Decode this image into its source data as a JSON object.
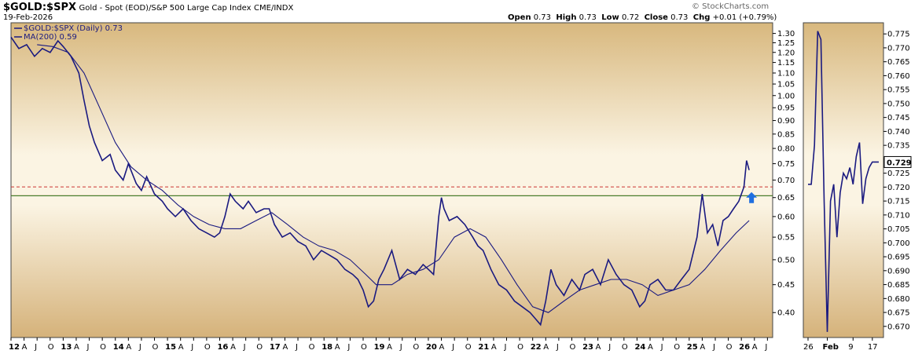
{
  "header": {
    "symbol": "$GOLD:$SPX",
    "description": "Gold - Spot (EOD)/S&P 500 Large Cap Index",
    "exchange": "CME/INDX",
    "date": "19-Feb-2026",
    "brand": "© StockCharts.com",
    "open_label": "Open",
    "open": "0.73",
    "high_label": "High",
    "high": "0.73",
    "low_label": "Low",
    "low": "0.72",
    "close_label": "Close",
    "close": "0.73",
    "chg_label": "Chg",
    "chg": "+0.01 (+0.79%)"
  },
  "chart_data": [
    {
      "type": "line",
      "title": "$GOLD:$SPX",
      "legend_placement": "top-left",
      "x_labels": [
        "12",
        "A",
        "J",
        "O",
        "13",
        "A",
        "J",
        "O",
        "14",
        "A",
        "J",
        "O",
        "15",
        "A",
        "J",
        "O",
        "16",
        "A",
        "J",
        "O",
        "17",
        "A",
        "J",
        "O",
        "18",
        "A",
        "J",
        "O",
        "19",
        "A",
        "J",
        "O",
        "20",
        "A",
        "J",
        "O",
        "21",
        "A",
        "J",
        "O",
        "22",
        "A",
        "J",
        "O",
        "23",
        "A",
        "J",
        "O",
        "24",
        "A",
        "J",
        "O",
        "25",
        "A",
        "J",
        "O",
        "26",
        "A",
        "J"
      ],
      "y_scale": "log",
      "y_ticks": [
        "1.30",
        "1.25",
        "1.20",
        "1.15",
        "1.10",
        "1.05",
        "1.00",
        "0.95",
        "0.90",
        "0.85",
        "0.80",
        "0.75",
        "0.70",
        "0.65",
        "0.60",
        "0.55",
        "0.50",
        "0.45",
        "0.40"
      ],
      "y_range": [
        0.36,
        1.36
      ],
      "x_range": [
        2012.0,
        2026.6
      ],
      "reference_lines": [
        {
          "value": 0.68,
          "style": "dashed",
          "color": "#cc3333"
        },
        {
          "value": 0.655,
          "style": "solid",
          "color": "#cc0000"
        },
        {
          "value": 0.655,
          "style": "solid",
          "color": "#2a8c2a"
        }
      ],
      "series": [
        {
          "name": "$GOLD:$SPX (Daily) 0.73",
          "color": "#1a1a80",
          "x": [
            2012.0,
            2012.15,
            2012.3,
            2012.45,
            2012.6,
            2012.75,
            2012.9,
            2013.0,
            2013.15,
            2013.3,
            2013.4,
            2013.5,
            2013.6,
            2013.75,
            2013.9,
            2014.0,
            2014.15,
            2014.25,
            2014.4,
            2014.5,
            2014.6,
            2014.75,
            2014.9,
            2015.0,
            2015.15,
            2015.3,
            2015.45,
            2015.6,
            2015.75,
            2015.9,
            2016.0,
            2016.1,
            2016.2,
            2016.3,
            2016.45,
            2016.55,
            2016.7,
            2016.85,
            2016.95,
            2017.05,
            2017.2,
            2017.35,
            2017.5,
            2017.65,
            2017.8,
            2017.95,
            2018.1,
            2018.25,
            2018.4,
            2018.55,
            2018.65,
            2018.75,
            2018.85,
            2018.95,
            2019.05,
            2019.15,
            2019.3,
            2019.45,
            2019.6,
            2019.75,
            2019.9,
            2020.0,
            2020.1,
            2020.2,
            2020.25,
            2020.3,
            2020.4,
            2020.55,
            2020.7,
            2020.85,
            2020.95,
            2021.05,
            2021.2,
            2021.35,
            2021.5,
            2021.65,
            2021.8,
            2021.95,
            2022.05,
            2022.15,
            2022.25,
            2022.35,
            2022.45,
            2022.6,
            2022.75,
            2022.9,
            2023.0,
            2023.15,
            2023.3,
            2023.45,
            2023.6,
            2023.75,
            2023.9,
            2024.05,
            2024.15,
            2024.25,
            2024.4,
            2024.55,
            2024.7,
            2024.85,
            2025.0,
            2025.15,
            2025.25,
            2025.35,
            2025.45,
            2025.55,
            2025.65,
            2025.75,
            2025.85,
            2025.95,
            2026.05,
            2026.1,
            2026.15
          ],
          "y": [
            1.28,
            1.22,
            1.24,
            1.18,
            1.22,
            1.2,
            1.26,
            1.23,
            1.18,
            1.1,
            0.98,
            0.88,
            0.82,
            0.76,
            0.78,
            0.73,
            0.7,
            0.75,
            0.69,
            0.67,
            0.71,
            0.66,
            0.64,
            0.62,
            0.6,
            0.62,
            0.59,
            0.57,
            0.56,
            0.55,
            0.56,
            0.6,
            0.66,
            0.64,
            0.62,
            0.64,
            0.61,
            0.62,
            0.62,
            0.58,
            0.55,
            0.56,
            0.54,
            0.53,
            0.5,
            0.52,
            0.51,
            0.5,
            0.48,
            0.47,
            0.46,
            0.44,
            0.41,
            0.42,
            0.46,
            0.48,
            0.52,
            0.46,
            0.48,
            0.47,
            0.49,
            0.48,
            0.47,
            0.6,
            0.65,
            0.62,
            0.59,
            0.6,
            0.58,
            0.55,
            0.53,
            0.52,
            0.48,
            0.45,
            0.44,
            0.42,
            0.41,
            0.4,
            0.39,
            0.38,
            0.42,
            0.48,
            0.45,
            0.43,
            0.46,
            0.44,
            0.47,
            0.48,
            0.45,
            0.5,
            0.47,
            0.45,
            0.44,
            0.41,
            0.42,
            0.45,
            0.46,
            0.44,
            0.44,
            0.46,
            0.48,
            0.55,
            0.66,
            0.56,
            0.58,
            0.53,
            0.59,
            0.6,
            0.62,
            0.64,
            0.68,
            0.76,
            0.73
          ]
        },
        {
          "name": "MA(200) 0.59",
          "color": "#1a1a80",
          "x": [
            2012.5,
            2012.8,
            2013.1,
            2013.4,
            2013.7,
            2014.0,
            2014.3,
            2014.6,
            2014.9,
            2015.2,
            2015.5,
            2015.8,
            2016.1,
            2016.4,
            2016.7,
            2017.0,
            2017.3,
            2017.6,
            2017.9,
            2018.2,
            2018.5,
            2018.8,
            2019.0,
            2019.3,
            2019.6,
            2019.9,
            2020.2,
            2020.5,
            2020.8,
            2021.1,
            2021.4,
            2021.7,
            2022.0,
            2022.3,
            2022.6,
            2022.9,
            2023.2,
            2023.5,
            2023.8,
            2024.1,
            2024.4,
            2024.7,
            2025.0,
            2025.3,
            2025.6,
            2025.9,
            2026.15
          ],
          "y": [
            1.24,
            1.23,
            1.2,
            1.1,
            0.95,
            0.82,
            0.74,
            0.7,
            0.67,
            0.63,
            0.6,
            0.58,
            0.57,
            0.57,
            0.59,
            0.61,
            0.58,
            0.55,
            0.53,
            0.52,
            0.5,
            0.47,
            0.45,
            0.45,
            0.47,
            0.48,
            0.5,
            0.55,
            0.57,
            0.55,
            0.5,
            0.45,
            0.41,
            0.4,
            0.42,
            0.44,
            0.45,
            0.46,
            0.46,
            0.45,
            0.43,
            0.44,
            0.45,
            0.48,
            0.52,
            0.56,
            0.59
          ]
        }
      ],
      "markers": [
        {
          "type": "up-arrow",
          "x": 2026.15,
          "y": 0.65,
          "color": "#1f6fe0"
        }
      ]
    },
    {
      "type": "line",
      "y_scale": "linear",
      "x_labels": [
        "26",
        "Feb",
        "9",
        "17"
      ],
      "y_ticks": [
        "0.775",
        "0.770",
        "0.765",
        "0.760",
        "0.755",
        "0.750",
        "0.745",
        "0.740",
        "0.735",
        "0.730",
        "0.725",
        "0.720",
        "0.715",
        "0.710",
        "0.705",
        "0.700",
        "0.695",
        "0.690",
        "0.685",
        "0.680",
        "0.675",
        "0.670"
      ],
      "y_range": [
        0.666,
        0.779
      ],
      "last_value_label": "0.729",
      "series": [
        {
          "name": "",
          "color": "#1a1a80",
          "x": [
            0,
            1,
            2,
            3,
            4,
            5,
            6,
            7,
            8,
            9,
            10,
            11,
            12,
            13,
            14,
            15,
            16,
            17,
            18,
            19,
            20,
            21,
            22
          ],
          "y": [
            0.721,
            0.721,
            0.735,
            0.776,
            0.773,
            0.715,
            0.668,
            0.715,
            0.721,
            0.702,
            0.718,
            0.725,
            0.723,
            0.727,
            0.721,
            0.731,
            0.736,
            0.714,
            0.723,
            0.727,
            0.729,
            0.729,
            0.729
          ]
        }
      ]
    }
  ]
}
